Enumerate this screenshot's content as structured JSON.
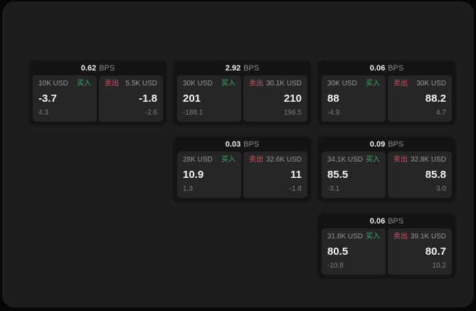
{
  "labels": {
    "buy": "买入",
    "sell": "卖出",
    "bps_unit": "BPS"
  },
  "colors": {
    "buy_green": "#3fa66d",
    "sell_red": "#cc5266",
    "panel_bg": "#1d1d1d",
    "card_bg": "#141414",
    "pane_bg": "#262626"
  },
  "cards": [
    {
      "bps": "0.62",
      "buy": {
        "amount": "10K USD",
        "value": "-3.7",
        "sub": "4.3"
      },
      "sell": {
        "amount": "5.5K USD",
        "value": "-1.8",
        "sub": "-2.6"
      }
    },
    {
      "bps": "2.92",
      "buy": {
        "amount": "30K USD",
        "value": "201",
        "sub": "-188.1"
      },
      "sell": {
        "amount": "30.1K USD",
        "value": "210",
        "sub": "196.5"
      }
    },
    {
      "bps": "0.06",
      "buy": {
        "amount": "30K USD",
        "value": "88",
        "sub": "-4.9"
      },
      "sell": {
        "amount": "30K USD",
        "value": "88.2",
        "sub": "4.7"
      }
    },
    {
      "bps": "0.03",
      "buy": {
        "amount": "28K USD",
        "value": "10.9",
        "sub": "1.3"
      },
      "sell": {
        "amount": "32.6K USD",
        "value": "11",
        "sub": "-1.8"
      }
    },
    {
      "bps": "0.09",
      "buy": {
        "amount": "34.1K USD",
        "value": "85.5",
        "sub": "-3.1"
      },
      "sell": {
        "amount": "32.8K USD",
        "value": "85.8",
        "sub": "3.0"
      }
    },
    {
      "bps": "0.06",
      "buy": {
        "amount": "31.8K USD",
        "value": "80.5",
        "sub": "-10.8"
      },
      "sell": {
        "amount": "39.1K USD",
        "value": "80.7",
        "sub": "10.2"
      }
    }
  ]
}
